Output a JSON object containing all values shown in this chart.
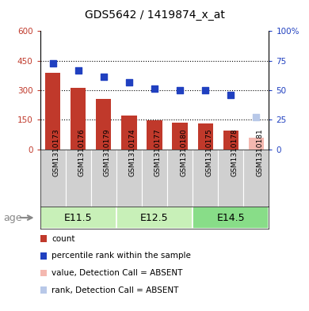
{
  "title": "GDS5642 / 1419874_x_at",
  "samples": [
    "GSM1310173",
    "GSM1310176",
    "GSM1310179",
    "GSM1310174",
    "GSM1310177",
    "GSM1310180",
    "GSM1310175",
    "GSM1310178",
    "GSM1310181"
  ],
  "count_values": [
    390,
    310,
    255,
    170,
    148,
    135,
    133,
    95,
    0
  ],
  "count_absent": [
    0,
    0,
    0,
    0,
    0,
    0,
    0,
    0,
    60
  ],
  "rank_values": [
    73.0,
    66.5,
    61.5,
    56.5,
    51.0,
    50.0,
    50.0,
    46.0,
    0
  ],
  "rank_absent": [
    0,
    0,
    0,
    0,
    0,
    0,
    0,
    0,
    27.5
  ],
  "groups": [
    {
      "label": "E11.5",
      "start": 0,
      "end": 3
    },
    {
      "label": "E12.5",
      "start": 3,
      "end": 6
    },
    {
      "label": "E14.5",
      "start": 6,
      "end": 9
    }
  ],
  "ylim_left": [
    0,
    600
  ],
  "ylim_right": [
    0,
    100
  ],
  "yticks_left": [
    0,
    150,
    300,
    450,
    600
  ],
  "yticks_right": [
    0,
    25,
    50,
    75,
    100
  ],
  "ytick_labels_left": [
    "0",
    "150",
    "300",
    "450",
    "600"
  ],
  "ytick_labels_right": [
    "0",
    "25",
    "50",
    "75",
    "100%"
  ],
  "bar_color": "#c0392b",
  "bar_absent_color": "#f4b8b0",
  "rank_color": "#2040c0",
  "rank_absent_color": "#b8c8e8",
  "bg_plot": "#ffffff",
  "bg_sample_area": "#d0d0d0",
  "bg_group_light": "#c8f0b8",
  "bg_group_mid": "#88dd88",
  "legend_items": [
    {
      "color": "#c0392b",
      "label": "count"
    },
    {
      "color": "#2040c0",
      "label": "percentile rank within the sample"
    },
    {
      "color": "#f4b8b0",
      "label": "value, Detection Call = ABSENT"
    },
    {
      "color": "#b8c8e8",
      "label": "rank, Detection Call = ABSENT"
    }
  ]
}
